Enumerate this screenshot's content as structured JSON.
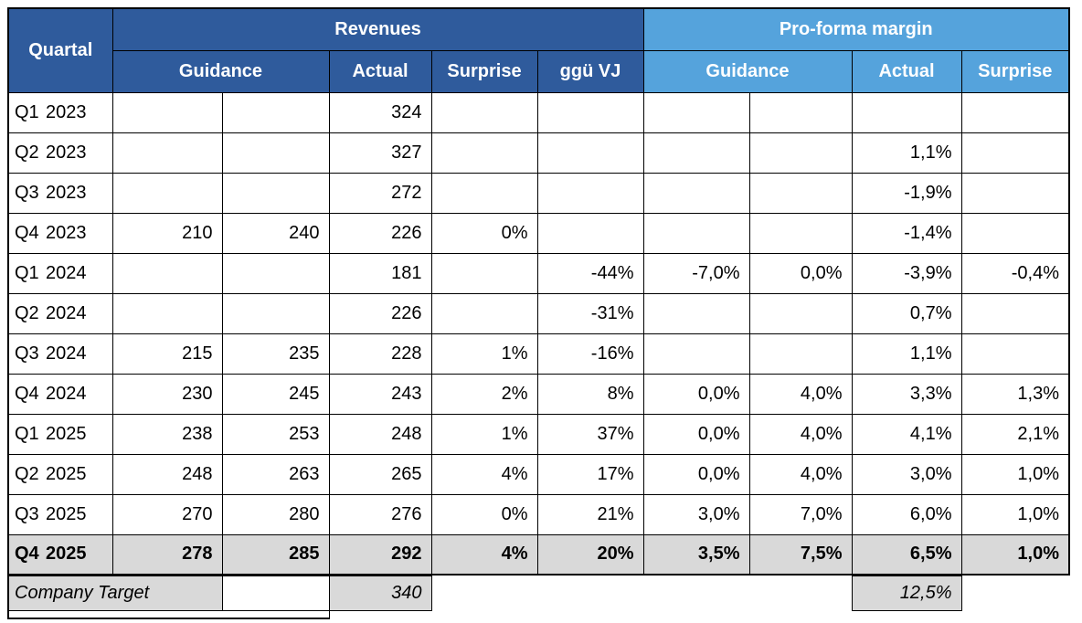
{
  "colors": {
    "header_dark_blue": "#2F5B9C",
    "header_light_blue": "#55A3DC",
    "highlight_gray": "#D9D9D9",
    "border_black": "#000000"
  },
  "chart_data": {
    "type": "table",
    "title": "",
    "header": {
      "quartal": "Quartal",
      "groups": [
        {
          "label": "Revenues",
          "subcolumns": [
            "Guidance",
            "Actual",
            "Surprise",
            "ggü VJ"
          ]
        },
        {
          "label": "Pro-forma margin",
          "subcolumns": [
            "Guidance",
            "Actual",
            "Surprise"
          ]
        }
      ]
    },
    "column_keys": [
      "guidance_low",
      "guidance_high",
      "actual",
      "surprise",
      "ggue_vj",
      "pf_guidance_low",
      "pf_guidance_high",
      "pf_actual",
      "pf_surprise"
    ],
    "rows": [
      {
        "quarter": "Q1",
        "year": "2023",
        "highlight": false,
        "cells": [
          "",
          "",
          "324",
          "",
          "",
          "",
          "",
          "",
          ""
        ]
      },
      {
        "quarter": "Q2",
        "year": "2023",
        "highlight": false,
        "cells": [
          "",
          "",
          "327",
          "",
          "",
          "",
          "",
          "1,1%",
          ""
        ]
      },
      {
        "quarter": "Q3",
        "year": "2023",
        "highlight": false,
        "cells": [
          "",
          "",
          "272",
          "",
          "",
          "",
          "",
          "-1,9%",
          ""
        ]
      },
      {
        "quarter": "Q4",
        "year": "2023",
        "highlight": false,
        "cells": [
          "210",
          "240",
          "226",
          "0%",
          "",
          "",
          "",
          "-1,4%",
          ""
        ]
      },
      {
        "quarter": "Q1",
        "year": "2024",
        "highlight": false,
        "cells": [
          "",
          "",
          "181",
          "",
          "-44%",
          "-7,0%",
          "0,0%",
          "-3,9%",
          "-0,4%"
        ]
      },
      {
        "quarter": "Q2",
        "year": "2024",
        "highlight": false,
        "cells": [
          "",
          "",
          "226",
          "",
          "-31%",
          "",
          "",
          "0,7%",
          ""
        ]
      },
      {
        "quarter": "Q3",
        "year": "2024",
        "highlight": false,
        "cells": [
          "215",
          "235",
          "228",
          "1%",
          "-16%",
          "",
          "",
          "1,1%",
          ""
        ]
      },
      {
        "quarter": "Q4",
        "year": "2024",
        "highlight": false,
        "cells": [
          "230",
          "245",
          "243",
          "2%",
          "8%",
          "0,0%",
          "4,0%",
          "3,3%",
          "1,3%"
        ]
      },
      {
        "quarter": "Q1",
        "year": "2025",
        "highlight": false,
        "cells": [
          "238",
          "253",
          "248",
          "1%",
          "37%",
          "0,0%",
          "4,0%",
          "4,1%",
          "2,1%"
        ]
      },
      {
        "quarter": "Q2",
        "year": "2025",
        "highlight": false,
        "cells": [
          "248",
          "263",
          "265",
          "4%",
          "17%",
          "0,0%",
          "4,0%",
          "3,0%",
          "1,0%"
        ]
      },
      {
        "quarter": "Q3",
        "year": "2025",
        "highlight": false,
        "cells": [
          "270",
          "280",
          "276",
          "0%",
          "21%",
          "3,0%",
          "7,0%",
          "6,0%",
          "1,0%"
        ]
      },
      {
        "quarter": "Q4",
        "year": "2025",
        "highlight": true,
        "cells": [
          "278",
          "285",
          "292",
          "4%",
          "20%",
          "3,5%",
          "7,5%",
          "6,5%",
          "1,0%"
        ]
      }
    ],
    "target_row": {
      "label": "Company Target",
      "revenues_actual": "340",
      "proforma_actual": "12,5%"
    }
  }
}
